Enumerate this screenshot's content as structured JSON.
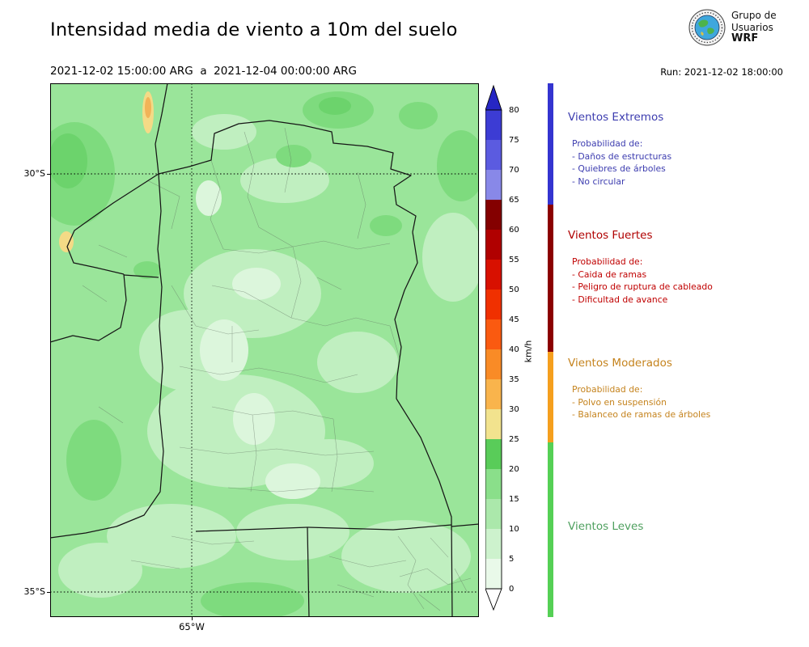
{
  "header": {
    "title": "Intensidad media de viento a 10m del suelo",
    "date_range": "2021-12-02 15:00:00 ARG  a  2021-12-04 00:00:00 ARG",
    "run_label": "Run: 2021-12-02 18:00:00",
    "logo": {
      "line1": "Grupo de",
      "line2": "Usuarios",
      "line3": "WRF"
    }
  },
  "map": {
    "lat_ticks": [
      "30°S",
      "35°S"
    ],
    "lon_ticks": [
      "65°W"
    ]
  },
  "colorbar": {
    "unit": "km/h",
    "ticks": [
      0,
      5,
      10,
      15,
      20,
      25,
      30,
      35,
      40,
      45,
      50,
      55,
      60,
      65,
      70,
      75,
      80
    ],
    "over_color": "#2626c4",
    "under_color": "#ffffff",
    "segment_colors_top_to_bottom": [
      "#3c3cd4",
      "#5b5be0",
      "#8888e8",
      "#840000",
      "#b00000",
      "#d81000",
      "#f03000",
      "#fa5a10",
      "#f98b26",
      "#f9b44c",
      "#f2e38e",
      "#59cc59",
      "#8adf8a",
      "#abe8ab",
      "#cdf2cd",
      "#e9f9e9"
    ]
  },
  "legend": {
    "categories": [
      {
        "id": "extremos",
        "title": "Vientos Extremos",
        "title_color": "#3c3caf",
        "text_color": "#3c3caf",
        "strip_color": "#3434d0",
        "lines": [
          "Probabilidad de:",
          "- Daños de estructuras",
          "- Quiebres de árboles",
          "- No circular"
        ]
      },
      {
        "id": "fuertes",
        "title": "Vientos Fuertes",
        "title_color": "#b00000",
        "text_color": "#c00000",
        "strip_color": "#8b0000",
        "lines": [
          "Probabilidad de:",
          "- Caida de ramas",
          "- Peligro de ruptura de cableado",
          "- Dificultad de avance"
        ]
      },
      {
        "id": "moderados",
        "title": "Vientos Moderados",
        "title_color": "#c5831d",
        "text_color": "#c5831d",
        "strip_color": "#f59f1e",
        "lines": [
          "Probabilidad de:",
          "- Polvo en suspensión",
          "- Balanceo de ramas de árboles"
        ]
      },
      {
        "id": "leves",
        "title": "Vientos Leves",
        "title_color": "#4fa05f",
        "text_color": "#4fa05f",
        "strip_color": "#55d055",
        "lines": []
      }
    ]
  }
}
